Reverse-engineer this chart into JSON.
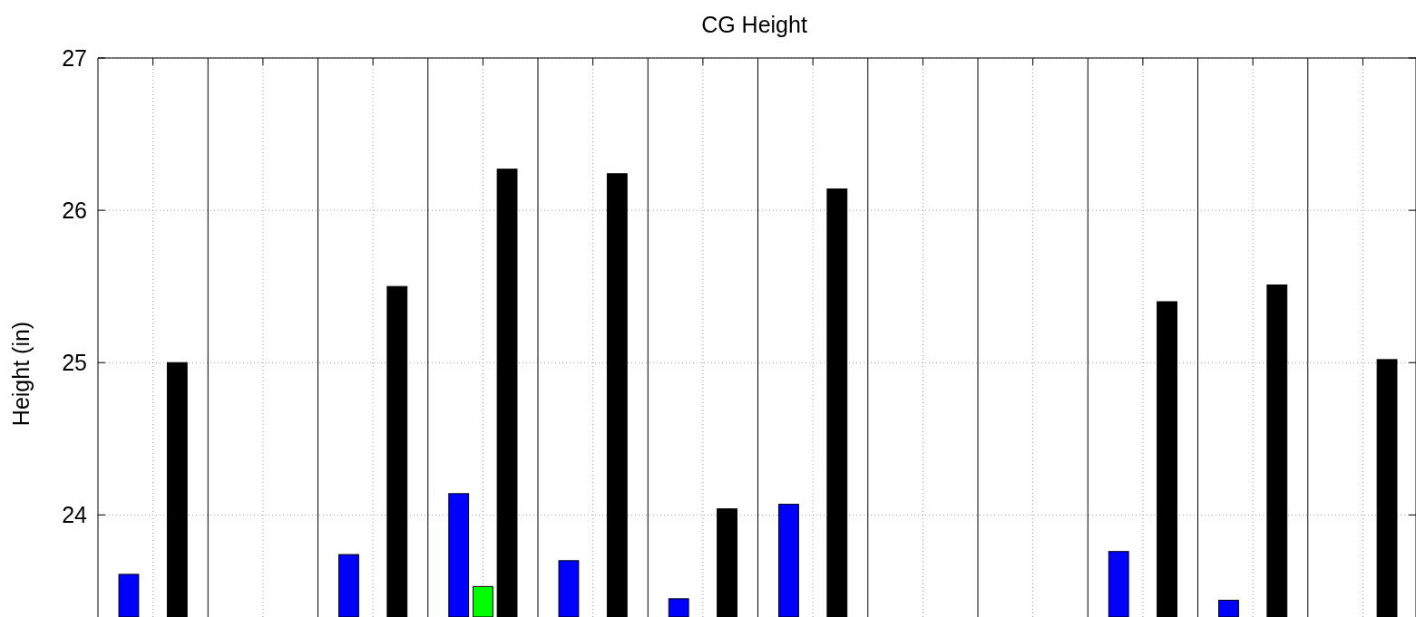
{
  "chart_data": {
    "type": "bar",
    "title": "CG Height",
    "ylabel": "Height (in)",
    "categories": [
      null,
      null,
      null,
      null,
      null,
      null,
      null,
      null,
      null,
      null,
      null,
      null
    ],
    "series": [
      {
        "color": "#0000ff",
        "values": [
          23.61,
          null,
          23.74,
          24.14,
          23.7,
          23.45,
          24.07,
          null,
          null,
          23.76,
          23.44,
          null
        ]
      },
      {
        "color": "#00ff00",
        "values": [
          null,
          null,
          null,
          23.53,
          null,
          null,
          null,
          null,
          null,
          null,
          null,
          null
        ]
      },
      {
        "color": "#000000",
        "values": [
          25.0,
          null,
          25.5,
          26.27,
          26.24,
          24.04,
          26.14,
          null,
          null,
          25.4,
          25.51,
          25.02
        ]
      }
    ],
    "ylim": [
      23.33,
      27
    ],
    "yticks": [
      24,
      25,
      26,
      27
    ],
    "grid": true
  }
}
